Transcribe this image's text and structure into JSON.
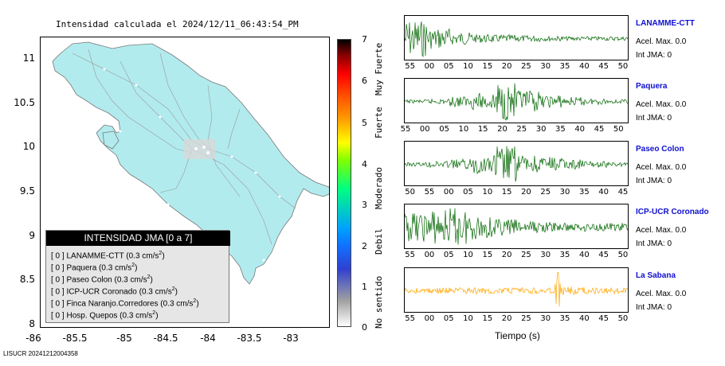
{
  "map": {
    "title": "Intensidad calculada el 2024/12/11_06:43:54_PM",
    "y_ticks": [
      "11",
      "10.5",
      "10",
      "9.5",
      "9",
      "8.5",
      "8"
    ],
    "x_ticks": [
      "-86",
      "-85.5",
      "-85",
      "-84.5",
      "-84",
      "-83.5",
      "-83"
    ],
    "land_color": "#b2ebee",
    "legend": {
      "header": "INTENSIDAD JMA [0 a 7]",
      "rows": [
        {
          "bracket": "[ 0 ]",
          "name": "LANAMME-CTT (0.3 cm/s",
          "sup": "2",
          "close": ")"
        },
        {
          "bracket": "[ 0 ]",
          "name": "Paquera (0.3 cm/s",
          "sup": "2",
          "close": ")"
        },
        {
          "bracket": "[ 0 ]",
          "name": "Paseo Colon (0.3 cm/s",
          "sup": "2",
          "close": ")"
        },
        {
          "bracket": "[ 0 ]",
          "name": "ICP-UCR Coronado (0.3 cm/s",
          "sup": "2",
          "close": ")"
        },
        {
          "bracket": "[ 0 ]",
          "name": "Finca Naranjo.Corredores (0.3 cm/s",
          "sup": "2",
          "close": ")"
        },
        {
          "bracket": "[ 0 ]",
          "name": "Hosp. Quepos (0.3 cm/s",
          "sup": "2",
          "close": ")"
        }
      ]
    }
  },
  "colorbar": {
    "ticks": [
      "7",
      "6",
      "5",
      "4",
      "3",
      "2",
      "1",
      "0"
    ],
    "labels": [
      "Muy Fuerte",
      "Fuerte",
      "Moderado",
      "Debil",
      "No sentido"
    ]
  },
  "stations": [
    {
      "name": "LANAMME-CTT",
      "acel": "Acel. Max. 0.0",
      "int": "Int JMA: 0",
      "color": "#006400",
      "ticks": [
        "55",
        "00",
        "05",
        "10",
        "15",
        "20",
        "25",
        "30",
        "35",
        "40",
        "45",
        "50"
      ],
      "tick_start": 0.02,
      "amp": [
        0.9,
        0.5,
        0.3,
        0.2,
        0.18,
        0.15,
        0.12,
        0.1,
        0.1,
        0.1
      ]
    },
    {
      "name": "Paquera",
      "acel": "Acel. Max. 0.0",
      "int": "Int JMA: 0",
      "color": "#006400",
      "ticks": [
        "55",
        "00",
        "05",
        "10",
        "15",
        "20",
        "25",
        "30",
        "35",
        "40",
        "45",
        "50"
      ],
      "tick_start": 0.0,
      "amp": [
        0.08,
        0.12,
        0.25,
        0.4,
        0.9,
        0.5,
        0.3,
        0.2,
        0.15,
        0.1
      ]
    },
    {
      "name": "Paseo Colon",
      "acel": "Acel. Max. 0.0",
      "int": "Int JMA: 0",
      "color": "#006400",
      "ticks": [
        "50",
        "55",
        "00",
        "05",
        "10",
        "15",
        "20",
        "25",
        "30",
        "35",
        "40",
        "45"
      ],
      "tick_start": 0.02,
      "amp": [
        0.1,
        0.15,
        0.25,
        0.45,
        0.9,
        0.45,
        0.35,
        0.25,
        0.15,
        0.1
      ]
    },
    {
      "name": "ICP-UCR Coronado",
      "acel": "Acel. Max. 0.0",
      "int": "Int JMA: 0",
      "color": "#006400",
      "ticks": [
        "55",
        "00",
        "05",
        "10",
        "15",
        "20",
        "25",
        "30",
        "35",
        "40",
        "45",
        "50"
      ],
      "tick_start": 0.02,
      "amp": [
        0.7,
        0.8,
        0.9,
        0.6,
        0.4,
        0.3,
        0.25,
        0.2,
        0.2,
        0.2
      ]
    },
    {
      "name": "La Sabana",
      "acel": "Acel. Max. 0.0",
      "int": "Int JMA: 0",
      "color": "#ffa500",
      "ticks": [
        "55",
        "00",
        "05",
        "10",
        "15",
        "20",
        "25",
        "30",
        "35",
        "40",
        "45",
        "50"
      ],
      "tick_start": 0.02,
      "amp": [
        0.15,
        0.15,
        0.15,
        0.15,
        0.15,
        0.15,
        0.15,
        0.2,
        0.15,
        0.15
      ]
    }
  ],
  "xaxis_label": "Tiempo (s)",
  "footer": "LISUCR 20241212004358"
}
